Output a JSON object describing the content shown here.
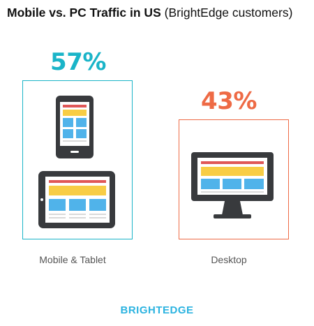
{
  "title": {
    "bold": "Mobile vs. PC Traffic in US",
    "light": "(BrightEdge customers)"
  },
  "chart_data": {
    "type": "bar",
    "title": "Mobile vs. PC Traffic in US (BrightEdge customers)",
    "categories": [
      "Mobile & Tablet",
      "Desktop"
    ],
    "values": [
      57,
      43
    ],
    "value_labels": [
      "57%",
      "43%"
    ],
    "unit": "%",
    "ylim": [
      0,
      100
    ],
    "grid": false,
    "legend": "none",
    "colors": [
      "#1ab4c8",
      "#ee6a45"
    ]
  },
  "colors": {
    "mobile": "#1ab4c8",
    "desktop": "#ee6a45",
    "device_body": "#383a3d",
    "screen_red": "#e05757",
    "screen_yellow": "#f8cd45",
    "screen_blue": "#50b3ea",
    "screen_grey": "#d9d9d9",
    "brand": "#2bb3e0"
  },
  "icons": [
    "phone-icon",
    "tablet-icon",
    "desktop-monitor-icon"
  ],
  "footer": {
    "brand": "BRIGHTEDGE"
  }
}
